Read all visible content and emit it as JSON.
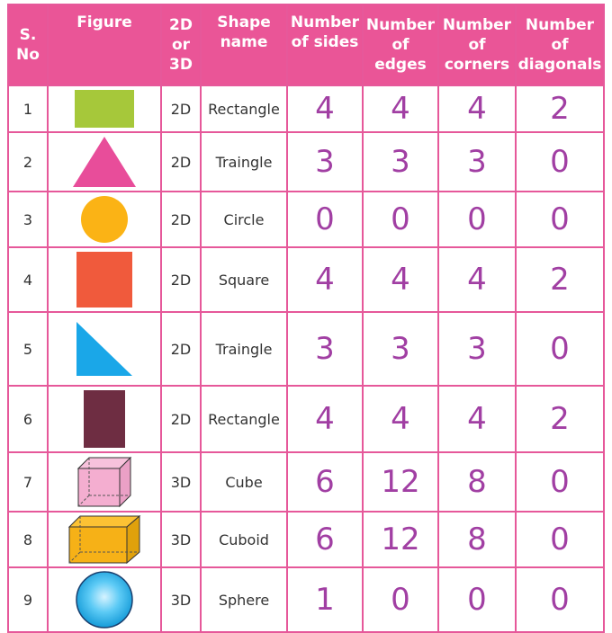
{
  "colors": {
    "header_bg": "#ea5597",
    "border": "#e6589a",
    "handwriting": "#a13fa3"
  },
  "headers": [
    [
      "S.",
      "No"
    ],
    [
      "Figure"
    ],
    [
      "2D",
      "or",
      "3D"
    ],
    [
      "Shape",
      "name"
    ],
    [
      "Number",
      "of sides"
    ],
    [
      "Number",
      "of",
      "edges"
    ],
    [
      "Number",
      "of",
      "corners"
    ],
    [
      "Number",
      "of",
      "diagonals"
    ]
  ],
  "rows": [
    {
      "sno": "1",
      "figure": "green-rectangle-icon",
      "dim": "2D",
      "name": "Rectangle",
      "sides": "4",
      "edges": "4",
      "corners": "4",
      "diagonals": "2"
    },
    {
      "sno": "2",
      "figure": "pink-triangle-icon",
      "dim": "2D",
      "name": "Traingle",
      "sides": "3",
      "edges": "3",
      "corners": "3",
      "diagonals": "0"
    },
    {
      "sno": "3",
      "figure": "orange-circle-icon",
      "dim": "2D",
      "name": "Circle",
      "sides": "0",
      "edges": "0",
      "corners": "0",
      "diagonals": "0"
    },
    {
      "sno": "4",
      "figure": "red-square-icon",
      "dim": "2D",
      "name": "Square",
      "sides": "4",
      "edges": "4",
      "corners": "4",
      "diagonals": "2"
    },
    {
      "sno": "5",
      "figure": "blue-right-triangle-icon",
      "dim": "2D",
      "name": "Traingle",
      "sides": "3",
      "edges": "3",
      "corners": "3",
      "diagonals": "0"
    },
    {
      "sno": "6",
      "figure": "maroon-rectangle-icon",
      "dim": "2D",
      "name": "Rectangle",
      "sides": "4",
      "edges": "4",
      "corners": "4",
      "diagonals": "2"
    },
    {
      "sno": "7",
      "figure": "pink-cube-icon",
      "dim": "3D",
      "name": "Cube",
      "sides": "6",
      "edges": "12",
      "corners": "8",
      "diagonals": "0"
    },
    {
      "sno": "8",
      "figure": "orange-cuboid-icon",
      "dim": "3D",
      "name": "Cuboid",
      "sides": "6",
      "edges": "12",
      "corners": "8",
      "diagonals": "0"
    },
    {
      "sno": "9",
      "figure": "blue-sphere-icon",
      "dim": "3D",
      "name": "Sphere",
      "sides": "1",
      "edges": "0",
      "corners": "0",
      "diagonals": "0"
    }
  ]
}
